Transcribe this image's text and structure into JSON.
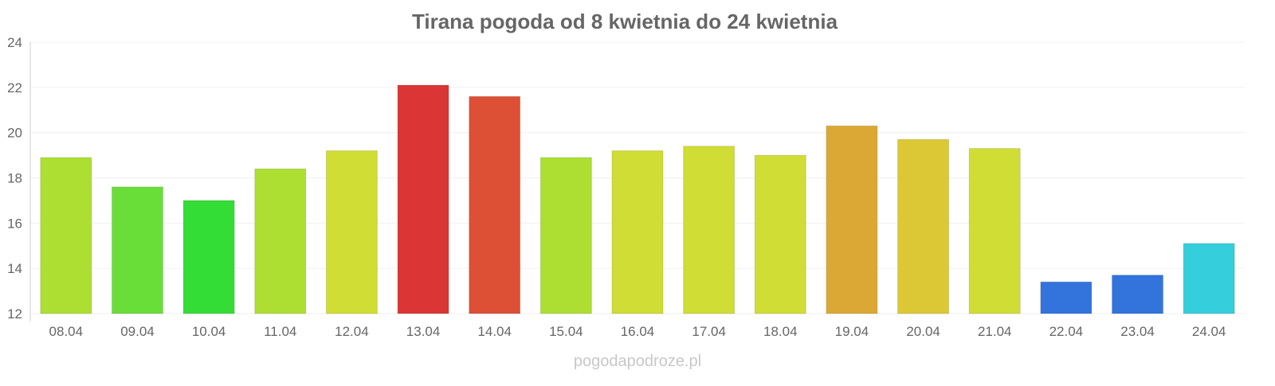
{
  "chart_data": {
    "type": "bar",
    "title": "Tirana pogoda od 8 kwietnia do 24 kwietnia",
    "xlabel": "",
    "ylabel": "",
    "ylim": [
      12,
      24
    ],
    "yticks": [
      "12",
      "14",
      "16",
      "18",
      "20",
      "22",
      "24"
    ],
    "grid": true,
    "categories": [
      "08.04",
      "09.04",
      "10.04",
      "11.04",
      "12.04",
      "13.04",
      "14.04",
      "15.04",
      "16.04",
      "17.04",
      "18.04",
      "19.04",
      "20.04",
      "21.04",
      "22.04",
      "23.04",
      "24.04"
    ],
    "values": [
      18.9,
      17.6,
      17.0,
      18.4,
      19.2,
      22.1,
      21.6,
      18.9,
      19.2,
      19.4,
      19.0,
      20.3,
      19.7,
      19.3,
      13.4,
      13.7,
      15.1
    ],
    "colors": [
      "#addf32",
      "#6ade38",
      "#33dd36",
      "#addf32",
      "#d0dd34",
      "#dc3535",
      "#de5035",
      "#addf32",
      "#d0dd34",
      "#d0dd34",
      "#d0dd34",
      "#dca835",
      "#dcc835",
      "#d0dd34",
      "#3274dc",
      "#3274dc",
      "#35cedc"
    ],
    "watermark": "pogodapodroze.pl"
  }
}
